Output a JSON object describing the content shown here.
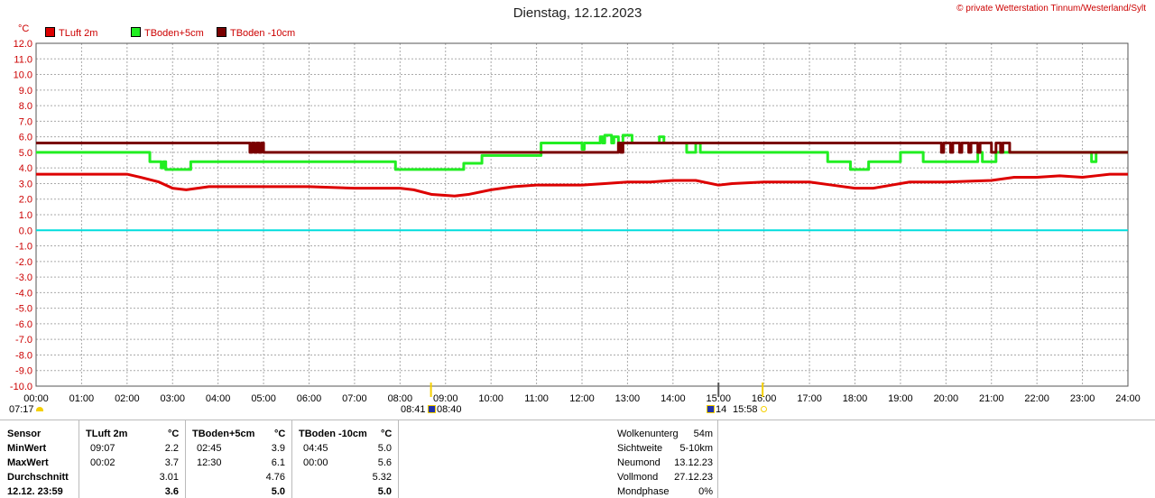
{
  "title": "Dienstag, 12.12.2023",
  "copyright": "© private Wetterstation Tinnum/Westerland/Sylt",
  "y_unit": "°C",
  "legend": [
    {
      "label": "TLuft 2m",
      "color": "#dd0000"
    },
    {
      "label": "TBoden+5cm",
      "color": "#22ee22"
    },
    {
      "label": "TBoden -10cm",
      "color": "#7a0000"
    }
  ],
  "chart_data": {
    "type": "line",
    "title": "Dienstag, 12.12.2023",
    "ylabel": "°C",
    "ylim": [
      -10,
      12
    ],
    "xlim": [
      0,
      24
    ],
    "grid": true,
    "x_tick_labels": [
      "00:00",
      "01:00",
      "02:00",
      "03:00",
      "04:00",
      "05:00",
      "06:00",
      "07:00",
      "08:00",
      "09:00",
      "10:00",
      "11:00",
      "12:00",
      "13:00",
      "14:00",
      "15:00",
      "16:00",
      "17:00",
      "18:00",
      "19:00",
      "20:00",
      "21:00",
      "22:00",
      "23:00",
      "24:00"
    ],
    "y_tick_labels": [
      "12.0",
      "11.0",
      "10.0",
      "9.0",
      "8.0",
      "7.0",
      "6.0",
      "5.0",
      "4.0",
      "3.0",
      "2.0",
      "1.0",
      "0.0",
      "-1.0",
      "-2.0",
      "-3.0",
      "-4.0",
      "-5.0",
      "-6.0",
      "-7.0",
      "-8.0",
      "-9.0",
      "-10.0"
    ],
    "zero_line_color": "#00dddd",
    "series": [
      {
        "name": "TLuft 2m",
        "color": "#dd0000",
        "step": false,
        "x": [
          0,
          2.0,
          2.3,
          2.7,
          3.0,
          3.3,
          3.8,
          5.0,
          6.0,
          7.0,
          8.0,
          8.3,
          8.7,
          9.2,
          9.5,
          10.0,
          10.5,
          11.0,
          12.0,
          12.5,
          13.0,
          13.5,
          14.0,
          14.5,
          15.0,
          15.3,
          16.0,
          17.0,
          17.5,
          18.0,
          18.4,
          18.8,
          19.2,
          20.0,
          21.0,
          21.5,
          22.0,
          22.5,
          23.0,
          23.3,
          23.6,
          24.0
        ],
        "y": [
          3.6,
          3.6,
          3.4,
          3.1,
          2.7,
          2.6,
          2.8,
          2.8,
          2.8,
          2.7,
          2.7,
          2.6,
          2.3,
          2.2,
          2.3,
          2.6,
          2.8,
          2.9,
          2.9,
          3.0,
          3.1,
          3.1,
          3.2,
          3.2,
          2.9,
          3.0,
          3.1,
          3.1,
          2.9,
          2.7,
          2.7,
          2.9,
          3.1,
          3.1,
          3.2,
          3.4,
          3.4,
          3.5,
          3.4,
          3.5,
          3.6,
          3.6
        ]
      },
      {
        "name": "TBoden+5cm",
        "color": "#22ee22",
        "step": true,
        "x": [
          0,
          2.5,
          2.7,
          2.75,
          2.8,
          2.85,
          3.4,
          7.9,
          9.4,
          9.8,
          11.1,
          12.0,
          12.05,
          12.4,
          12.45,
          12.5,
          12.65,
          12.7,
          12.8,
          12.9,
          13.1,
          13.7,
          13.8,
          14.3,
          14.5,
          14.6,
          16.0,
          17.4,
          17.9,
          18.3,
          19.0,
          19.5,
          20.0,
          20.7,
          20.8,
          20.9,
          21.1,
          22.5,
          23.2,
          23.3,
          24.0
        ],
        "y": [
          5.0,
          4.4,
          4.4,
          4.0,
          4.4,
          3.9,
          4.4,
          3.9,
          4.3,
          4.8,
          5.6,
          5.2,
          5.6,
          6.0,
          5.6,
          6.1,
          5.6,
          6.0,
          5.6,
          6.1,
          5.6,
          6.0,
          5.6,
          5.0,
          5.6,
          5.0,
          5.0,
          4.4,
          3.9,
          4.4,
          5.0,
          4.4,
          4.4,
          5.0,
          4.4,
          4.4,
          5.0,
          5.0,
          4.4,
          5.0,
          5.0
        ]
      },
      {
        "name": "TBoden -10cm",
        "color": "#7a0000",
        "step": true,
        "x": [
          0,
          4.7,
          4.75,
          4.8,
          4.85,
          4.9,
          4.95,
          5.0,
          12.8,
          12.85,
          12.9,
          12.95,
          19.9,
          19.95,
          20.1,
          20.15,
          20.3,
          20.35,
          20.5,
          20.55,
          20.7,
          20.75,
          21.0,
          21.1,
          21.2,
          21.25,
          21.4,
          21.5,
          24.0
        ],
        "y": [
          5.6,
          5.0,
          5.6,
          5.0,
          5.6,
          5.0,
          5.6,
          5.0,
          5.6,
          5.0,
          5.6,
          5.6,
          5.0,
          5.6,
          5.0,
          5.6,
          5.0,
          5.6,
          5.0,
          5.6,
          5.0,
          5.6,
          5.0,
          5.6,
          5.0,
          5.6,
          5.0,
          5.0,
          5.0
        ]
      }
    ],
    "sun_moon": {
      "sunrise": "08:41",
      "sunset": "15:58",
      "moonset": "08:40",
      "moonrise": "07:17",
      "noon_marker": "14"
    }
  },
  "stats_table": {
    "headers": [
      "Sensor",
      "TLuft 2m",
      "°C",
      "TBoden+5cm",
      "°C",
      "TBoden -10cm",
      "°C"
    ],
    "rows": [
      {
        "label": "MinWert",
        "c": [
          "09:07",
          "2.2",
          "02:45",
          "3.9",
          "04:45",
          "5.0"
        ]
      },
      {
        "label": "MaxWert",
        "c": [
          "00:02",
          "3.7",
          "12:30",
          "6.1",
          "00:00",
          "5.6"
        ]
      },
      {
        "label": "Durchschnitt",
        "c": [
          "",
          "3.01",
          "",
          "4.76",
          "",
          "5.32"
        ]
      },
      {
        "label": "12.12.  23:59",
        "c": [
          "",
          "3.6",
          "",
          "5.0",
          "",
          "5.0"
        ]
      }
    ]
  },
  "info_table": [
    {
      "label": "Wolkenunterg",
      "value": "54m"
    },
    {
      "label": "Sichtweite",
      "value": "5-10km"
    },
    {
      "label": "Neumond",
      "value": "13.12.23"
    },
    {
      "label": "Vollmond",
      "value": "27.12.23"
    },
    {
      "label": "Mondphase",
      "value": "0%"
    }
  ]
}
